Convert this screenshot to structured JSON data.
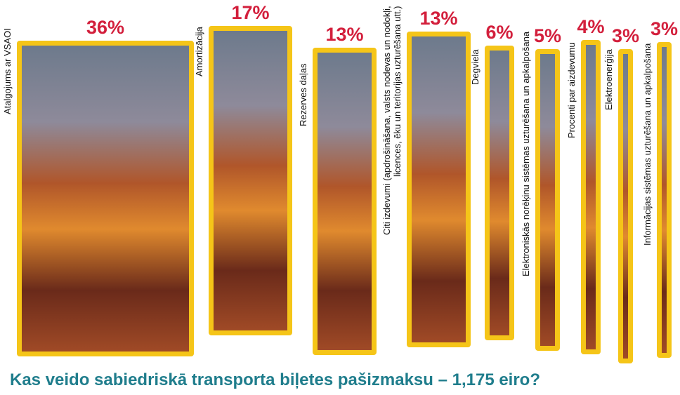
{
  "chart_data": {
    "type": "bar",
    "title": "Kas veido sabiedriskā transporta biļetes pašizmaksu – 1,175 eiro?",
    "categories": [
      "Atalgojums ar VSAOI",
      "Amortizācija",
      "Rezerves daļas",
      "Citi izdevumi (apdrošināšana, valsts nodevas un nodokļi, licences, ēku un teritorijas uzturēšana utt.)",
      "Degviela",
      "Elektroniskās norēķinu sistēmas uzturēšana un apkalpošana",
      "Procenti par aizdevumu",
      "Elektroenerģija",
      "Informācijas sistēmas uzturēšana un apkalpošana"
    ],
    "values": [
      36,
      17,
      13,
      13,
      6,
      5,
      4,
      3,
      3
    ],
    "value_labels": [
      "36%",
      "17%",
      "13%",
      "13%",
      "6%",
      "5%",
      "4%",
      "3%",
      "3%"
    ],
    "color": "#f5c518"
  }
}
